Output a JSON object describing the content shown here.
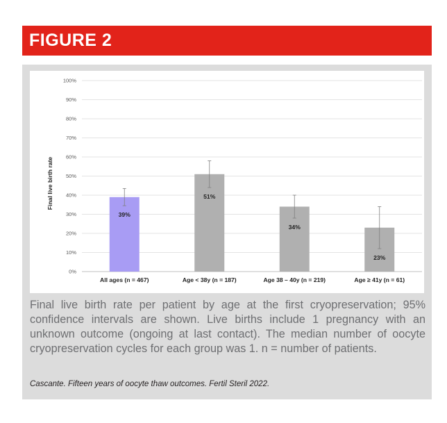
{
  "figure": {
    "title": "FIGURE 2",
    "caption": "Final live birth rate per patient by age at the first cryopreservation; 95% confidence intervals are shown. Live births include 1 pregnancy with an unknown outcome (ongoing at last contact). The median number of oocyte cryopreservation cycles for each group was 1. n = number of patients.",
    "citation": "Cascante. Fifteen years of oocyte thaw outcomes. Fertil Steril 2022.",
    "colors": {
      "banner": "#e2231a",
      "panel": "#dcdcdc",
      "highlight_bar": "#a89cf4",
      "bar": "#b0b0b0"
    }
  },
  "chart_data": {
    "type": "bar",
    "title": "",
    "xlabel": "",
    "ylabel": "Final live birth rate",
    "ylim": [
      0,
      100
    ],
    "yticks": [
      "0%",
      "10%",
      "20%",
      "30%",
      "40%",
      "50%",
      "60%",
      "70%",
      "80%",
      "90%",
      "100%"
    ],
    "grid": true,
    "categories": [
      "All ages (n = 467)",
      "Age < 38y (n = 187)",
      "Age 38 – 40y (n = 219)",
      "Age ≥ 41y (n = 61)"
    ],
    "values": [
      39,
      51,
      34,
      23
    ],
    "data_labels": [
      "39%",
      "51%",
      "34%",
      "23%"
    ],
    "ci_lower": [
      34.5,
      44,
      28,
      12
    ],
    "ci_upper": [
      43.5,
      58,
      40,
      34
    ],
    "bar_colors": [
      "#a89cf4",
      "#b0b0b0",
      "#b0b0b0",
      "#b0b0b0"
    ]
  }
}
